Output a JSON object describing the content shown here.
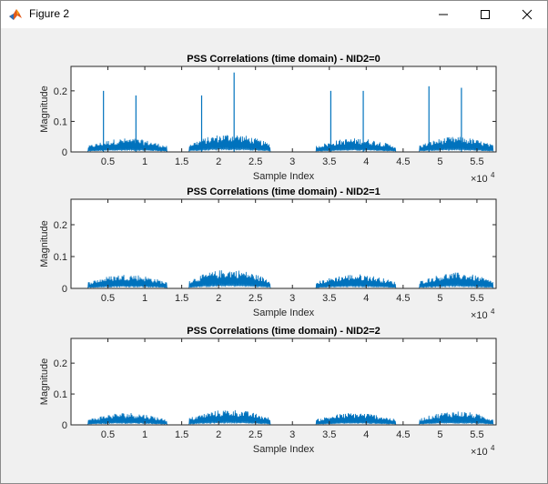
{
  "window": {
    "title": "Figure 2",
    "buttons": {
      "minimize": "minimize-icon",
      "maximize": "maximize-icon",
      "close": "close-icon"
    }
  },
  "colors": {
    "series": "#0072BD",
    "figure_bg": "#f0f0f0",
    "axes_bg": "#ffffff"
  },
  "chart_data": [
    {
      "type": "line",
      "title": "PSS Correlations (time domain) - NID2=0",
      "xlabel": "Sample Index",
      "ylabel": "Magnitude",
      "xlim": [
        0,
        57600
      ],
      "ylim": [
        0,
        0.28
      ],
      "x_exponent_label": "×10",
      "x_exponent": "4",
      "xticks": [
        5000,
        10000,
        15000,
        20000,
        25000,
        30000,
        35000,
        40000,
        45000,
        50000,
        55000
      ],
      "xtick_labels": [
        "0.5",
        "1",
        "1.5",
        "2",
        "2.5",
        "3",
        "3.5",
        "4",
        "4.5",
        "5",
        "5.5"
      ],
      "yticks": [
        0,
        0.1,
        0.2
      ],
      "ytick_labels": [
        "0",
        "0.1",
        "0.2"
      ],
      "bursts": [
        {
          "x_start": 2300,
          "x_end": 13000,
          "peak_level": 0.045
        },
        {
          "x_start": 16000,
          "x_end": 27000,
          "peak_level": 0.06
        },
        {
          "x_start": 33200,
          "x_end": 44000,
          "peak_level": 0.045
        },
        {
          "x_start": 47200,
          "x_end": 57200,
          "peak_level": 0.05
        }
      ],
      "spikes": [
        {
          "x": 4400,
          "y": 0.2
        },
        {
          "x": 8800,
          "y": 0.185
        },
        {
          "x": 17700,
          "y": 0.185
        },
        {
          "x": 22100,
          "y": 0.26
        },
        {
          "x": 35200,
          "y": 0.2
        },
        {
          "x": 39600,
          "y": 0.2
        },
        {
          "x": 48500,
          "y": 0.215
        },
        {
          "x": 52900,
          "y": 0.21
        }
      ]
    },
    {
      "type": "line",
      "title": "PSS Correlations (time domain) - NID2=1",
      "xlabel": "Sample Index",
      "ylabel": "Magnitude",
      "xlim": [
        0,
        57600
      ],
      "ylim": [
        0,
        0.28
      ],
      "x_exponent_label": "×10",
      "x_exponent": "4",
      "xticks": [
        5000,
        10000,
        15000,
        20000,
        25000,
        30000,
        35000,
        40000,
        45000,
        50000,
        55000
      ],
      "xtick_labels": [
        "0.5",
        "1",
        "1.5",
        "2",
        "2.5",
        "3",
        "3.5",
        "4",
        "4.5",
        "5",
        "5.5"
      ],
      "yticks": [
        0,
        0.1,
        0.2
      ],
      "ytick_labels": [
        "0",
        "0.1",
        "0.2"
      ],
      "bursts": [
        {
          "x_start": 2300,
          "x_end": 13000,
          "peak_level": 0.045
        },
        {
          "x_start": 16000,
          "x_end": 27000,
          "peak_level": 0.06
        },
        {
          "x_start": 33200,
          "x_end": 44000,
          "peak_level": 0.045
        },
        {
          "x_start": 47200,
          "x_end": 57200,
          "peak_level": 0.05
        }
      ],
      "spikes": []
    },
    {
      "type": "line",
      "title": "PSS Correlations (time domain) - NID2=2",
      "xlabel": "Sample Index",
      "ylabel": "Magnitude",
      "xlim": [
        0,
        57600
      ],
      "ylim": [
        0,
        0.28
      ],
      "x_exponent_label": "×10",
      "x_exponent": "4",
      "xticks": [
        5000,
        10000,
        15000,
        20000,
        25000,
        30000,
        35000,
        40000,
        45000,
        50000,
        55000
      ],
      "xtick_labels": [
        "0.5",
        "1",
        "1.5",
        "2",
        "2.5",
        "3",
        "3.5",
        "4",
        "4.5",
        "5",
        "5.5"
      ],
      "yticks": [
        0,
        0.1,
        0.2
      ],
      "ytick_labels": [
        "0",
        "0.1",
        "0.2"
      ],
      "bursts": [
        {
          "x_start": 2300,
          "x_end": 13000,
          "peak_level": 0.04
        },
        {
          "x_start": 16000,
          "x_end": 27000,
          "peak_level": 0.05
        },
        {
          "x_start": 33200,
          "x_end": 44000,
          "peak_level": 0.04
        },
        {
          "x_start": 47200,
          "x_end": 57200,
          "peak_level": 0.045
        }
      ],
      "spikes": []
    }
  ]
}
